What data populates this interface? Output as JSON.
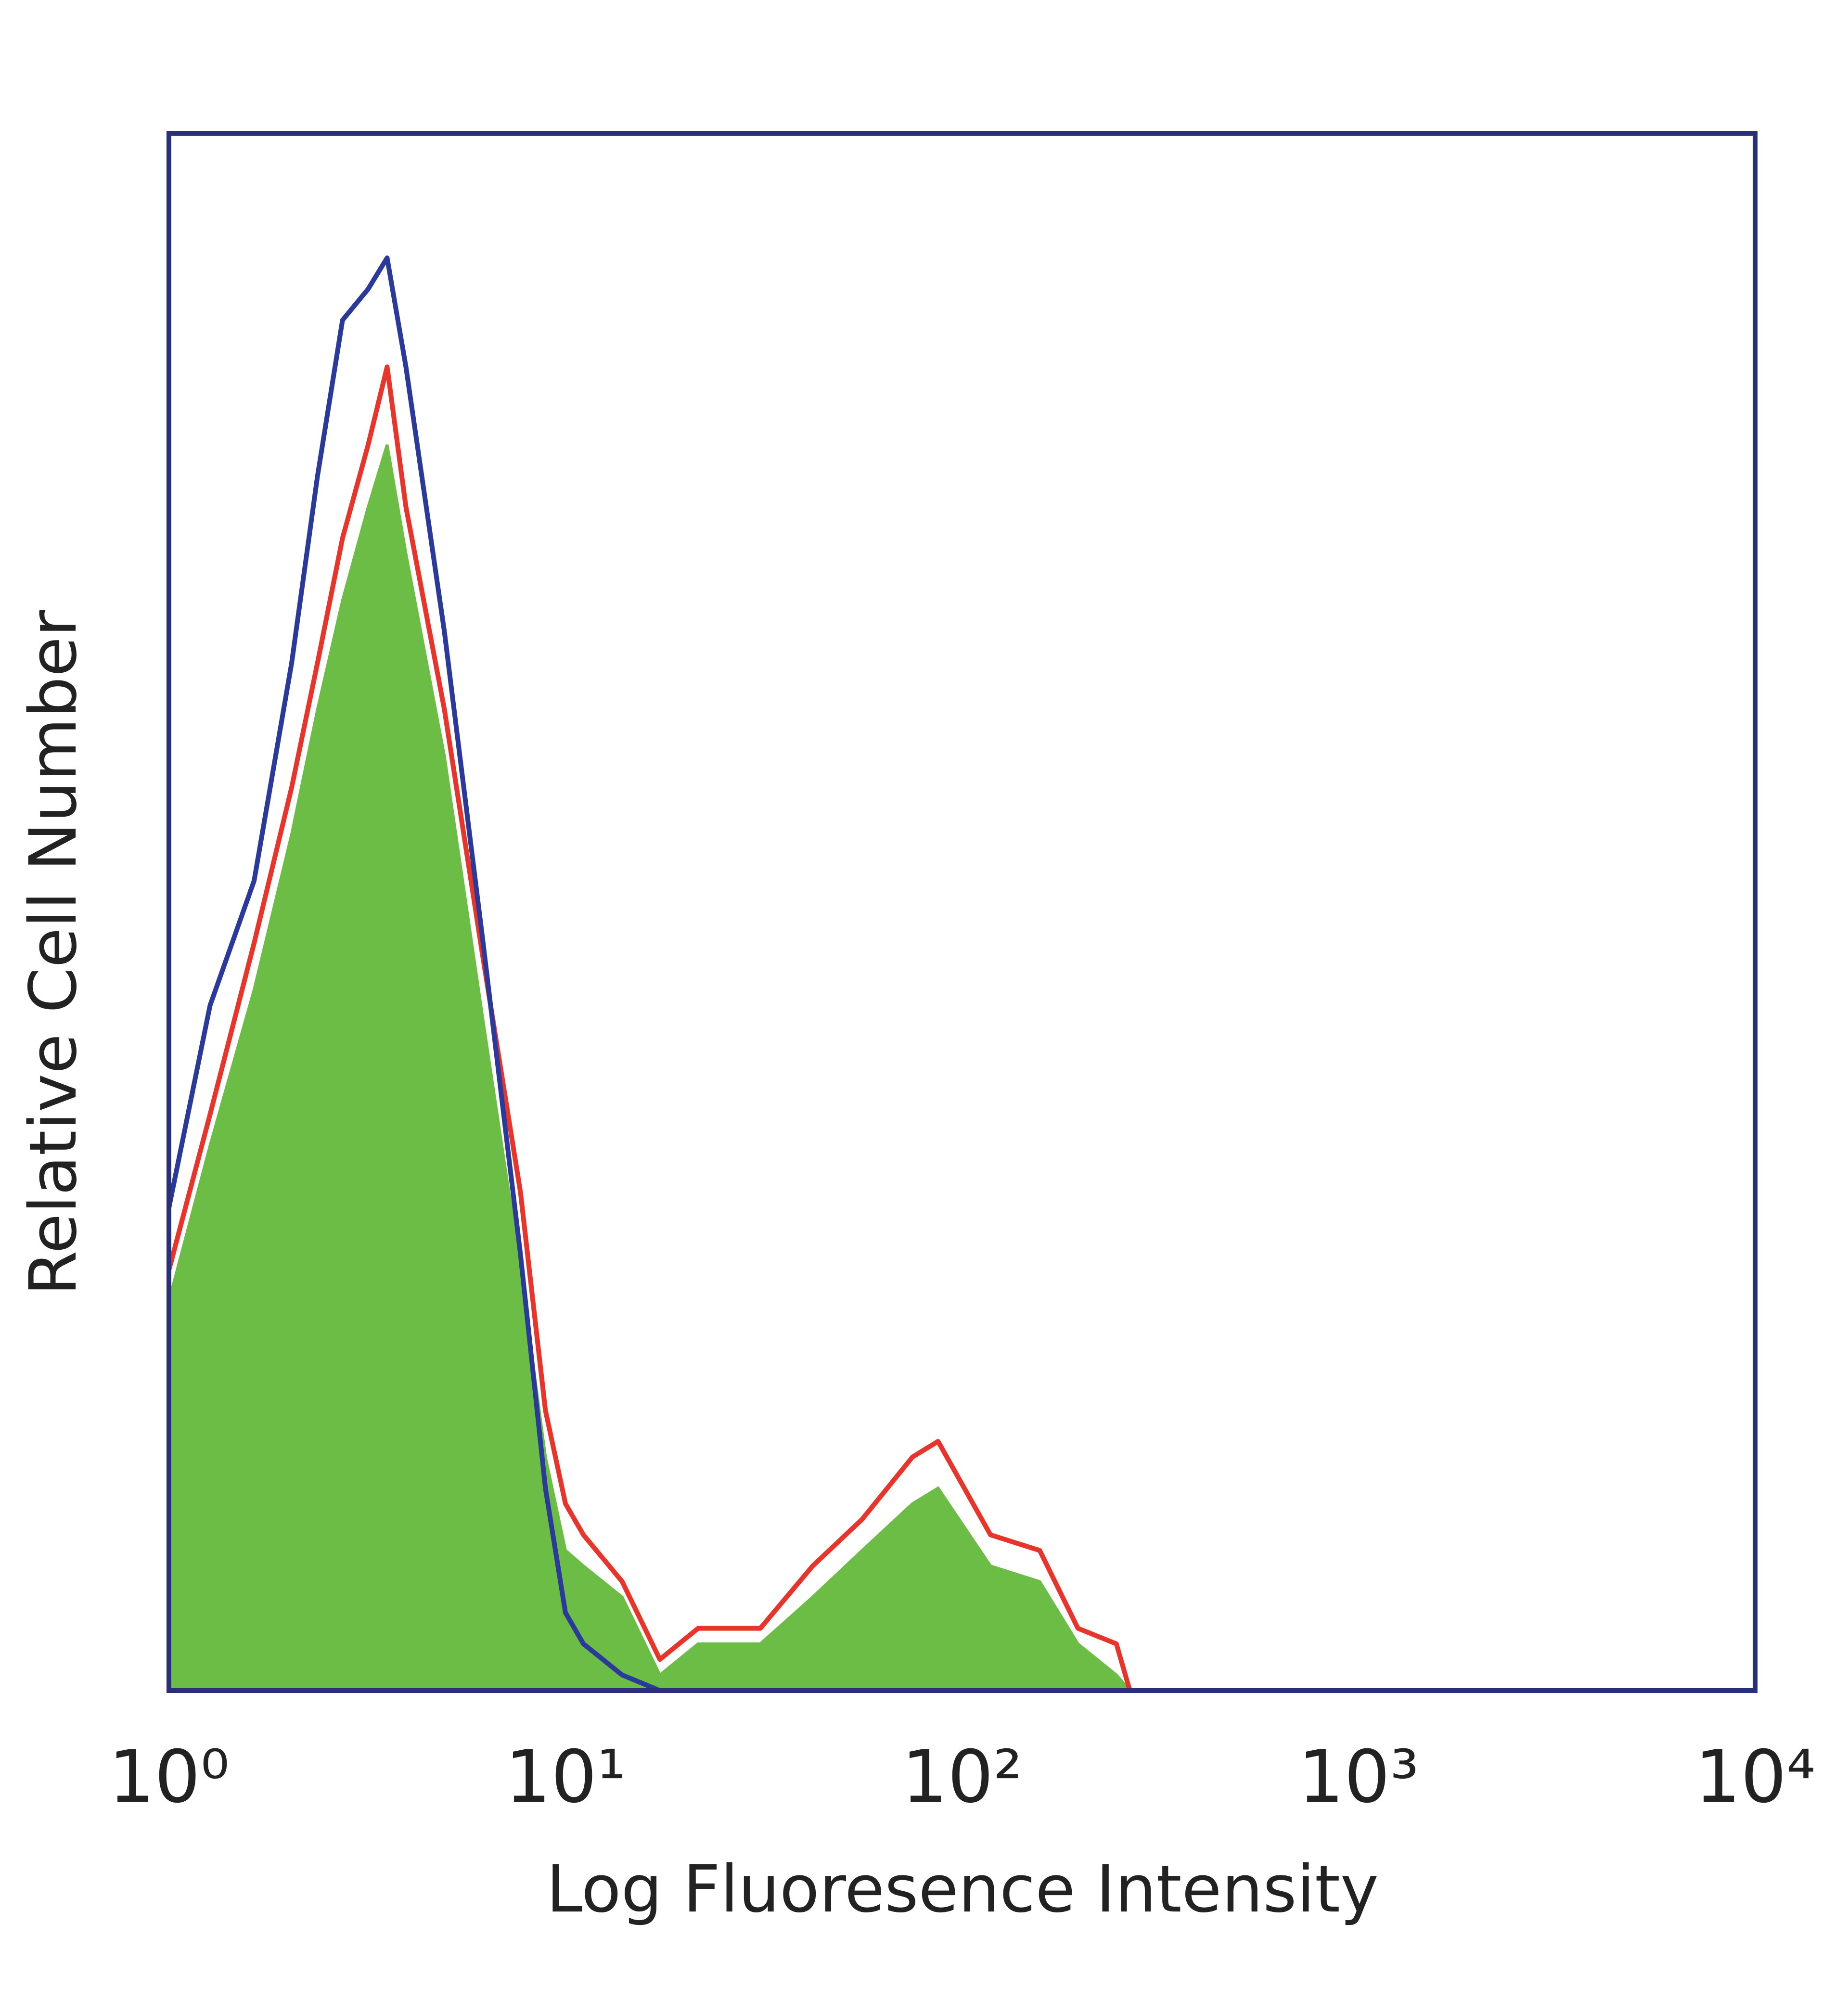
{
  "chart_data": {
    "type": "histogram-overlay",
    "x_label": "Log Fluoresence Intensity",
    "y_label": "Relative Cell Number",
    "xscale": "log",
    "xlim": [
      1,
      10000
    ],
    "xticks": [
      {
        "value": 1,
        "label": "10⁰"
      },
      {
        "value": 10,
        "label": "10¹"
      },
      {
        "value": 100,
        "label": "10²"
      },
      {
        "value": 1000,
        "label": "10³"
      },
      {
        "value": 10000,
        "label": "10⁴"
      }
    ],
    "ylim": [
      0,
      100
    ],
    "frame_color": "#2a2f7a",
    "x": [
      1,
      1.27,
      1.64,
      2.04,
      2.37,
      2.74,
      3.18,
      3.55,
      3.96,
      4.95,
      6.2,
      7.7,
      8.9,
      10,
      11.1,
      13.9,
      17.3,
      21.6,
      31,
      42,
      56,
      75,
      87,
      118,
      157,
      196,
      245,
      265
    ],
    "series": [
      {
        "color": "#6cbd45",
        "fill": true,
        "values": [
          25,
          35,
          45,
          55,
          63,
          70,
          76,
          80,
          73,
          60,
          43,
          27,
          15,
          9,
          8,
          6,
          1,
          3,
          3,
          6,
          9,
          12,
          13,
          8,
          7,
          3,
          1,
          0
        ]
      },
      {
        "color": "#e8352b",
        "fill": false,
        "values": [
          27,
          37,
          48,
          58,
          66,
          74,
          80,
          85,
          76,
          63,
          47,
          32,
          18,
          12,
          10,
          7,
          2,
          4,
          4,
          8,
          11,
          15,
          16,
          10,
          9,
          4,
          3,
          0
        ]
      },
      {
        "color": "#2b3a9a",
        "fill": false,
        "values": [
          31,
          44,
          52,
          66,
          78,
          88,
          90,
          92,
          85,
          68,
          48,
          28,
          13,
          5,
          3,
          1,
          0,
          0,
          0,
          0,
          0,
          0,
          0,
          0,
          0,
          0,
          0,
          0
        ]
      }
    ]
  }
}
